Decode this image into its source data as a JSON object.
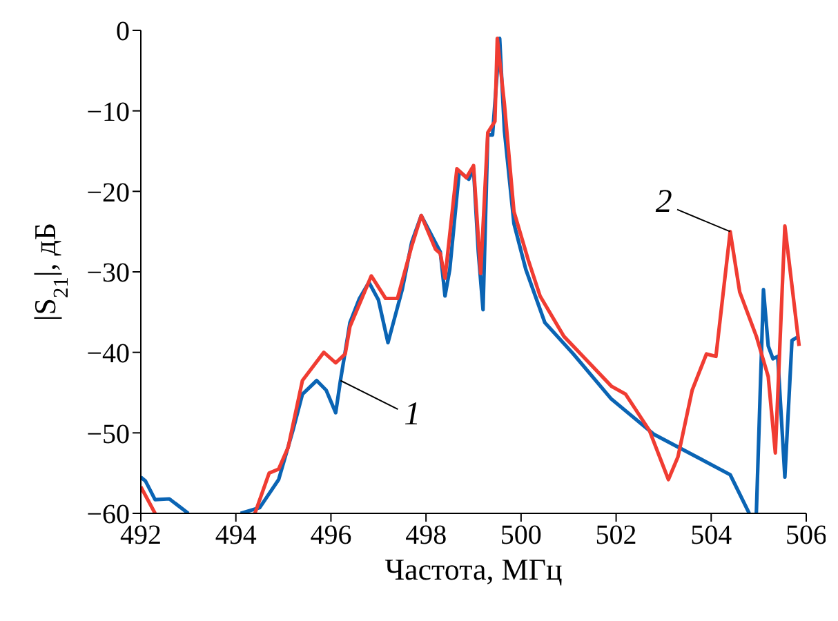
{
  "chart_data": {
    "type": "line",
    "xlabel": "Частота, МГц",
    "ylabel": "|S$_{21}$|, дБ",
    "xlim": [
      492,
      506
    ],
    "xticks": [
      492,
      494,
      496,
      498,
      500,
      502,
      504,
      506
    ],
    "ylim": [
      -60,
      0
    ],
    "yticks": [
      0,
      {
        "value": -10,
        "label": "−10"
      },
      {
        "value": -20,
        "label": "−20"
      },
      {
        "value": -30,
        "label": "−30"
      },
      {
        "value": -40,
        "label": "−40"
      },
      {
        "value": -50,
        "label": "−50"
      },
      {
        "value": -60,
        "label": "−60"
      }
    ],
    "marker": "none",
    "line_style": "solid",
    "annotations": [
      {
        "text": "1",
        "x": 496.2,
        "y": -43.5
      },
      {
        "text": "2",
        "x": 504.4,
        "y": -25
      }
    ],
    "series": [
      {
        "color": "#0a64b4",
        "x": [
          492.0,
          492.1,
          492.3,
          492.6,
          493.0,
          493.05,
          494.05,
          494.1,
          494.5,
          494.9,
          495.2,
          495.4,
          495.7,
          495.9,
          496.1,
          496.2,
          496.4,
          496.6,
          496.8,
          497.0,
          497.2,
          497.5,
          497.7,
          497.9,
          498.3,
          498.4,
          498.5,
          498.7,
          498.9,
          499.0,
          499.1,
          499.2,
          499.3,
          499.4,
          499.55,
          499.65,
          499.85,
          500.1,
          500.5,
          501.1,
          501.9,
          502.8,
          503.7,
          504.4,
          504.8,
          504.85,
          504.95,
          505.1,
          505.2,
          505.3,
          505.4,
          505.55,
          505.7,
          505.85
        ],
        "values": [
          -55.5,
          -56,
          -58.3,
          -58.2,
          -60,
          null,
          null,
          -60,
          -59.3,
          -55.8,
          -49.7,
          -45.2,
          -43.5,
          -44.7,
          -47.5,
          -43.5,
          -36.3,
          -33.3,
          -31.3,
          -33.5,
          -38.8,
          -32.2,
          -26.3,
          -23,
          -27.5,
          -33,
          -29.7,
          -17.5,
          -18.5,
          -17.2,
          -27.5,
          -34.7,
          -13,
          -13,
          -1,
          -12.5,
          -24,
          -29.7,
          -36.3,
          -40.2,
          -45.8,
          -50.2,
          -53,
          -55.2,
          -60,
          null,
          -60,
          -32.2,
          -39.2,
          -40.8,
          -40.5,
          -55.5,
          -38.5,
          -38
        ]
      },
      {
        "color": "#f03c32",
        "x": [
          492.0,
          492.3,
          492.35,
          494.35,
          494.4,
          494.7,
          494.9,
          495.1,
          495.4,
          495.85,
          496.1,
          496.3,
          496.4,
          496.85,
          497.15,
          497.4,
          497.7,
          497.9,
          498.2,
          498.3,
          498.4,
          498.65,
          498.85,
          499.0,
          499.15,
          499.3,
          499.45,
          499.5,
          499.65,
          499.85,
          500.15,
          500.4,
          500.9,
          501.9,
          502.2,
          502.7,
          503.1,
          503.3,
          503.6,
          503.9,
          504.1,
          504.4,
          504.6,
          504.95,
          505.2,
          505.35,
          505.55,
          505.85
        ],
        "values": [
          -56.7,
          -60,
          null,
          null,
          -60,
          -55,
          -54.5,
          -51.8,
          -43.5,
          -40,
          -41.3,
          -40.2,
          -36.8,
          -30.5,
          -33.3,
          -33.3,
          -26.8,
          -23,
          -27.2,
          -27.7,
          -30.8,
          -17.2,
          -18.3,
          -16.8,
          -30.2,
          -12.7,
          -11.3,
          -1,
          -9.2,
          -22.5,
          -28.5,
          -33,
          -38,
          -44.2,
          -45.2,
          -49.7,
          -55.8,
          -53,
          -44.7,
          -40.2,
          -40.5,
          -25,
          -32.5,
          -38,
          -43,
          -52.5,
          -24.3,
          -39.2
        ]
      }
    ]
  }
}
